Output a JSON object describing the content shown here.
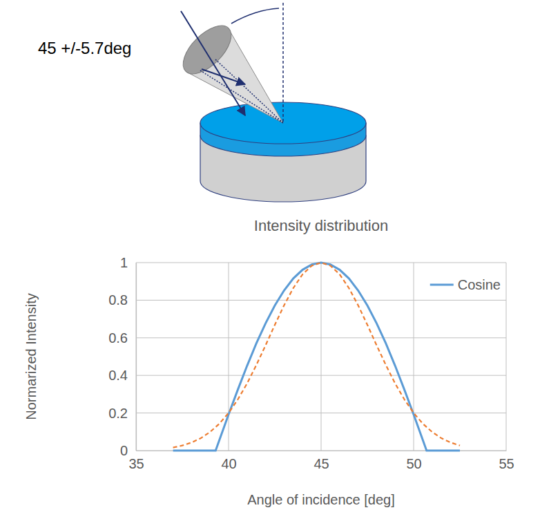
{
  "chart_data": {
    "type": "line",
    "title": "Intensity distribution",
    "x_label": "Angle of incidence [deg]",
    "y_label": "Normarized Intensity",
    "xlim": [
      35,
      55
    ],
    "xticks": [
      35,
      40,
      45,
      50,
      55
    ],
    "ylim": [
      0,
      1
    ],
    "yticks": [
      0,
      0.2,
      0.4,
      0.6,
      0.8,
      1
    ],
    "grid": true,
    "legend": "top-right",
    "series": [
      {
        "name": "Cosine",
        "color": "#5b9bd5",
        "line_style": "solid",
        "x": [
          37,
          38,
          39,
          39.3,
          39.5,
          40,
          40.5,
          41,
          41.5,
          42,
          42.5,
          43,
          43.5,
          44,
          44.5,
          45,
          45.5,
          46,
          46.5,
          47,
          47.5,
          48,
          48.5,
          49,
          49.5,
          50,
          50.5,
          50.7,
          51,
          52,
          52.5
        ],
        "values": [
          0,
          0,
          0,
          0,
          0.055,
          0.192,
          0.324,
          0.451,
          0.57,
          0.677,
          0.772,
          0.852,
          0.916,
          0.962,
          0.99,
          1,
          0.99,
          0.962,
          0.916,
          0.852,
          0.772,
          0.677,
          0.57,
          0.451,
          0.324,
          0.192,
          0.055,
          0,
          0,
          0,
          0
        ]
      },
      {
        "color": "#ed7d31",
        "line_style": "dashed",
        "x": [
          37,
          37.5,
          38,
          38.5,
          39,
          39.5,
          40,
          40.5,
          41,
          41.5,
          42,
          42.5,
          43,
          43.5,
          44,
          44.5,
          45,
          45.5,
          46,
          46.5,
          47,
          47.5,
          48,
          48.5,
          49,
          49.5,
          50,
          50.5,
          51,
          51.5,
          52,
          52.5
        ],
        "values": [
          0.016,
          0.027,
          0.043,
          0.066,
          0.099,
          0.143,
          0.2,
          0.272,
          0.357,
          0.455,
          0.56,
          0.669,
          0.773,
          0.865,
          0.938,
          0.984,
          1,
          0.984,
          0.938,
          0.865,
          0.773,
          0.669,
          0.56,
          0.455,
          0.357,
          0.272,
          0.2,
          0.143,
          0.099,
          0.066,
          0.043,
          0.027
        ]
      }
    ]
  },
  "diagram": {
    "label": "45 +/-5.7deg"
  }
}
